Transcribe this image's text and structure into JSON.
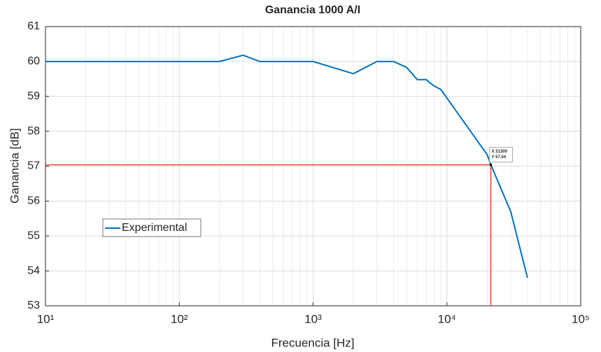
{
  "chart_data": {
    "type": "line",
    "title": "Ganancia 1000 A/I",
    "xlabel": "Frecuencia [Hz]",
    "ylabel": "Ganancia [dB]",
    "xscale": "log",
    "grid": true,
    "legend": "southwest",
    "x": [
      10,
      200,
      300,
      400,
      1000,
      2000,
      3000,
      4000,
      5000,
      6000,
      7000,
      8000,
      9000,
      20000,
      21300,
      30000,
      40000
    ],
    "series": [
      {
        "name": "Experimental",
        "color": "#0072bd",
        "values": [
          60,
          60,
          60.18,
          60,
          60,
          59.65,
          60,
          60,
          59.83,
          59.48,
          59.48,
          59.3,
          59.2,
          57.33,
          57.04,
          55.7,
          53.8
        ]
      }
    ],
    "xlim": [
      10,
      100000
    ],
    "xticks": [
      {
        "value": 10,
        "label": "10¹"
      },
      {
        "value": 100,
        "label": "10²"
      },
      {
        "value": 1000,
        "label": "10³"
      },
      {
        "value": 10000,
        "label": "10⁴"
      },
      {
        "value": 100000,
        "label": "10⁵"
      }
    ],
    "ylim": [
      53,
      61
    ],
    "yticks": [
      53,
      54,
      55,
      56,
      57,
      58,
      59,
      60,
      61
    ],
    "reference_lines": {
      "x": 21300,
      "y": 57.04,
      "color": "#e8403a"
    },
    "datatip": {
      "x": 21300,
      "y": 57.04,
      "labels": [
        "X 21300",
        "Y 57.04"
      ]
    }
  }
}
